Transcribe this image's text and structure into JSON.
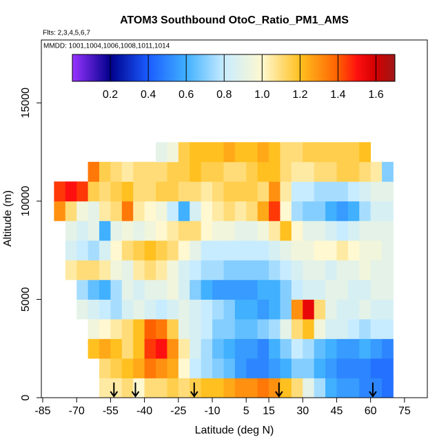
{
  "chart_data": {
    "type": "heatmap",
    "title": "ATOM3 Southbound OtoC_Ratio_PM1_AMS",
    "subtitle": "Flts: 2,3,4,5,6,7",
    "annotation": "MMDD: 1001,1004,1006,1008,1011,1014",
    "x_label": "Latitude (deg N)",
    "y_label": "Altitude (m)",
    "xlim": [
      -85.6,
      85.1
    ],
    "ylim": [
      0,
      18200
    ],
    "xticks": [
      -85,
      -70,
      -55,
      -40,
      -25,
      -10,
      5,
      15,
      30,
      45,
      60,
      75
    ],
    "yticks": [
      0,
      5000,
      10000,
      15000
    ],
    "x_edges": [
      -80,
      -75,
      -70,
      -65,
      -60,
      -55,
      -50,
      -45,
      -40,
      -35,
      -30,
      -25,
      -20,
      -15,
      -10,
      -5,
      0,
      5,
      10,
      15,
      20,
      25,
      30,
      35,
      40,
      45,
      50,
      55,
      60,
      65,
      70
    ],
    "y_edges": [
      0,
      1000,
      2000,
      3000,
      4000,
      5000,
      6000,
      7000,
      8000,
      9000,
      10000,
      11000,
      12000,
      13000
    ],
    "z": [
      [
        null,
        null,
        null,
        null,
        1.05,
        1.05,
        1.1,
        1.0,
        1.1,
        1.1,
        1.15,
        1.1,
        1.15,
        1.2,
        1.2,
        1.25,
        1.3,
        1.3,
        1.35,
        1.3,
        1.2,
        1.1,
        0.9,
        0.75,
        0.6,
        0.55,
        0.55,
        0.5,
        0.5,
        0.45
      ],
      [
        null,
        null,
        null,
        null,
        1.1,
        1.15,
        1.2,
        1.25,
        1.35,
        1.3,
        1.25,
        1.0,
        0.8,
        0.75,
        0.7,
        0.65,
        0.55,
        0.5,
        0.5,
        0.55,
        0.6,
        0.7,
        0.7,
        0.6,
        0.55,
        0.5,
        0.5,
        0.5,
        0.45,
        0.45
      ],
      [
        null,
        null,
        null,
        1.2,
        1.25,
        1.2,
        1.1,
        1.2,
        1.45,
        1.5,
        1.3,
        1.05,
        0.85,
        0.75,
        0.65,
        0.6,
        0.55,
        0.55,
        0.5,
        0.6,
        0.7,
        0.8,
        0.75,
        0.65,
        0.6,
        0.55,
        0.55,
        0.6,
        0.55,
        0.5
      ],
      [
        null,
        null,
        null,
        0.95,
        1.0,
        1.05,
        1.1,
        1.2,
        1.4,
        1.35,
        1.15,
        0.9,
        0.85,
        0.8,
        0.7,
        0.7,
        0.65,
        0.65,
        0.7,
        0.75,
        0.9,
        1.1,
        1.2,
        0.95,
        0.85,
        0.85,
        0.8,
        0.75,
        0.8,
        0.8
      ],
      [
        null,
        null,
        0.9,
        0.85,
        0.8,
        0.75,
        0.85,
        0.9,
        0.85,
        0.8,
        0.85,
        0.9,
        0.85,
        0.8,
        0.75,
        0.7,
        0.6,
        0.6,
        0.55,
        0.6,
        0.7,
        1.3,
        1.55,
        1.1,
        0.9,
        0.85,
        0.85,
        0.9,
        0.85,
        0.85
      ],
      [
        null,
        null,
        0.75,
        0.65,
        0.6,
        0.75,
        0.9,
        0.85,
        0.9,
        0.9,
        0.95,
        0.85,
        0.7,
        0.6,
        0.55,
        0.55,
        0.55,
        0.55,
        0.6,
        0.6,
        0.7,
        0.8,
        0.85,
        0.85,
        0.9,
        0.9,
        0.85,
        0.85,
        0.9,
        0.9
      ],
      [
        null,
        1.05,
        1.1,
        1.1,
        1.05,
        0.95,
        0.9,
        1.05,
        1.1,
        1.05,
        0.95,
        0.85,
        0.8,
        0.75,
        0.75,
        0.7,
        0.7,
        0.7,
        0.7,
        0.75,
        0.8,
        0.85,
        0.9,
        0.9,
        0.85,
        0.9,
        0.9,
        0.95,
        0.9,
        0.9
      ],
      [
        null,
        0.85,
        0.8,
        0.75,
        0.85,
        1.0,
        1.1,
        1.15,
        1.2,
        1.15,
        1.1,
        1.0,
        0.9,
        0.8,
        0.8,
        0.8,
        0.8,
        0.8,
        0.8,
        0.85,
        0.9,
        0.95,
        0.95,
        1.0,
        1.0,
        1.05,
        1.0,
        0.95,
        0.95,
        0.9
      ],
      [
        null,
        0.9,
        0.85,
        0.9,
        0.6,
        0.9,
        0.95,
        0.9,
        0.95,
        1.0,
        1.05,
        1.1,
        1.1,
        1.0,
        0.95,
        0.95,
        0.9,
        0.9,
        0.95,
        1.05,
        1.2,
        1.0,
        0.9,
        0.9,
        0.85,
        0.8,
        0.85,
        0.9,
        0.9,
        0.9
      ],
      [
        1.3,
        1.1,
        0.95,
        0.9,
        1.05,
        1.1,
        1.35,
        1.05,
        1.0,
        0.95,
        0.8,
        0.6,
        0.85,
        1.0,
        1.05,
        1.1,
        1.05,
        1.1,
        1.25,
        1.45,
        1.0,
        0.75,
        0.7,
        0.7,
        0.6,
        0.55,
        0.6,
        0.75,
        0.85,
        0.85
      ],
      [
        1.45,
        1.5,
        1.45,
        1.15,
        1.1,
        1.15,
        1.2,
        1.1,
        1.1,
        1.15,
        1.15,
        1.1,
        1.1,
        1.05,
        1.1,
        1.15,
        1.15,
        1.15,
        1.1,
        1.3,
        1.05,
        0.8,
        0.8,
        0.75,
        0.75,
        0.75,
        0.8,
        0.85,
        0.9,
        0.9
      ],
      [
        null,
        null,
        null,
        1.35,
        1.15,
        1.1,
        1.05,
        1.1,
        1.1,
        1.1,
        1.15,
        1.15,
        1.2,
        1.15,
        1.15,
        1.1,
        1.1,
        1.15,
        1.2,
        1.2,
        1.1,
        1.05,
        1.05,
        1.1,
        1.1,
        1.15,
        1.15,
        1.1,
        1.05,
        0.7
      ],
      [
        null,
        null,
        null,
        null,
        null,
        null,
        null,
        null,
        null,
        0.9,
        0.95,
        1.15,
        1.2,
        1.2,
        1.2,
        1.25,
        1.2,
        1.2,
        1.25,
        1.2,
        1.1,
        1.1,
        1.15,
        1.15,
        1.15,
        1.15,
        1.15,
        1.2,
        null,
        null
      ]
    ],
    "arrows": [
      -53.5,
      -44,
      -18,
      19.5,
      61
    ],
    "colorbar": {
      "range": [
        0,
        1.7
      ],
      "ticks": [
        0.2,
        0.4,
        0.6,
        0.8,
        {
          "value": 1,
          "label": "1.0"
        },
        1.2,
        1.4,
        1.6
      ],
      "stops": [
        {
          "value": 0,
          "color": "#9933ff"
        },
        {
          "value": 0.2,
          "color": "#00008b"
        },
        {
          "value": 0.4,
          "color": "#1a5cff"
        },
        {
          "value": 0.6,
          "color": "#40b0ff"
        },
        {
          "value": 0.8,
          "color": "#c8ecff"
        },
        {
          "value": 1,
          "color": "#fff8d0"
        },
        {
          "value": 1.2,
          "color": "#ffc020"
        },
        {
          "value": 1.4,
          "color": "#ff6000"
        },
        {
          "value": 1.5,
          "color": "#ff1010"
        },
        {
          "value": 1.6,
          "color": "#d00000"
        },
        {
          "value": 1.7,
          "color": "#a01818"
        }
      ]
    }
  }
}
